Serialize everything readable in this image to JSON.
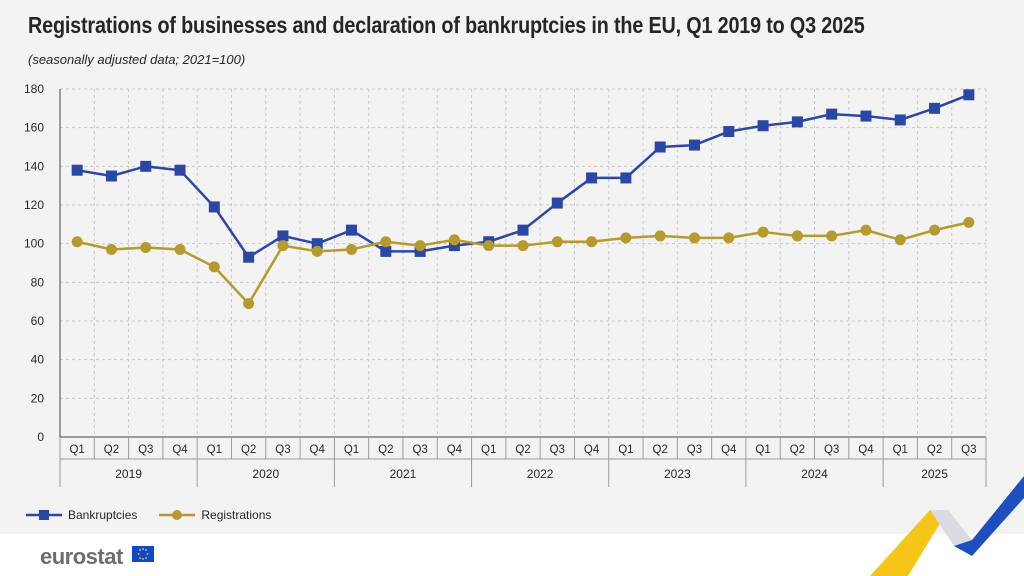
{
  "title": "Registrations of businesses and declaration of bankruptcies in the EU, Q1 2019 to Q3 2025",
  "subtitle": "(seasonally adjusted data; 2021=100)",
  "brand": "eurostat",
  "colors": {
    "bankruptcies": "#2a47a6",
    "registrations": "#b59a2e",
    "grid": "#c8c8c8",
    "axis": "#444444"
  },
  "chart_data": {
    "type": "line",
    "quarters": [
      "Q1",
      "Q2",
      "Q3",
      "Q4",
      "Q1",
      "Q2",
      "Q3",
      "Q4",
      "Q1",
      "Q2",
      "Q3",
      "Q4",
      "Q1",
      "Q2",
      "Q3",
      "Q4",
      "Q1",
      "Q2",
      "Q3",
      "Q4",
      "Q1",
      "Q2",
      "Q3",
      "Q4",
      "Q1",
      "Q2",
      "Q3"
    ],
    "years": [
      "2019",
      "2020",
      "2021",
      "2022",
      "2023",
      "2024",
      "2025"
    ],
    "ylim": [
      0,
      180
    ],
    "yticks": [
      0,
      20,
      40,
      60,
      80,
      100,
      120,
      140,
      160,
      180
    ],
    "grid": true,
    "legend_position": "bottom-left",
    "series": [
      {
        "name": "Bankruptcies",
        "marker": "square",
        "values": [
          138,
          135,
          140,
          138,
          119,
          93,
          104,
          100,
          107,
          96,
          96,
          99,
          101,
          107,
          121,
          134,
          134,
          150,
          151,
          158,
          161,
          163,
          167,
          166,
          164,
          170,
          177
        ]
      },
      {
        "name": "Registrations",
        "marker": "circle",
        "values": [
          101,
          97,
          98,
          97,
          88,
          69,
          99,
          96,
          97,
          101,
          99,
          102,
          99,
          99,
          101,
          101,
          103,
          104,
          103,
          103,
          106,
          104,
          104,
          107,
          102,
          107,
          111
        ]
      }
    ]
  }
}
